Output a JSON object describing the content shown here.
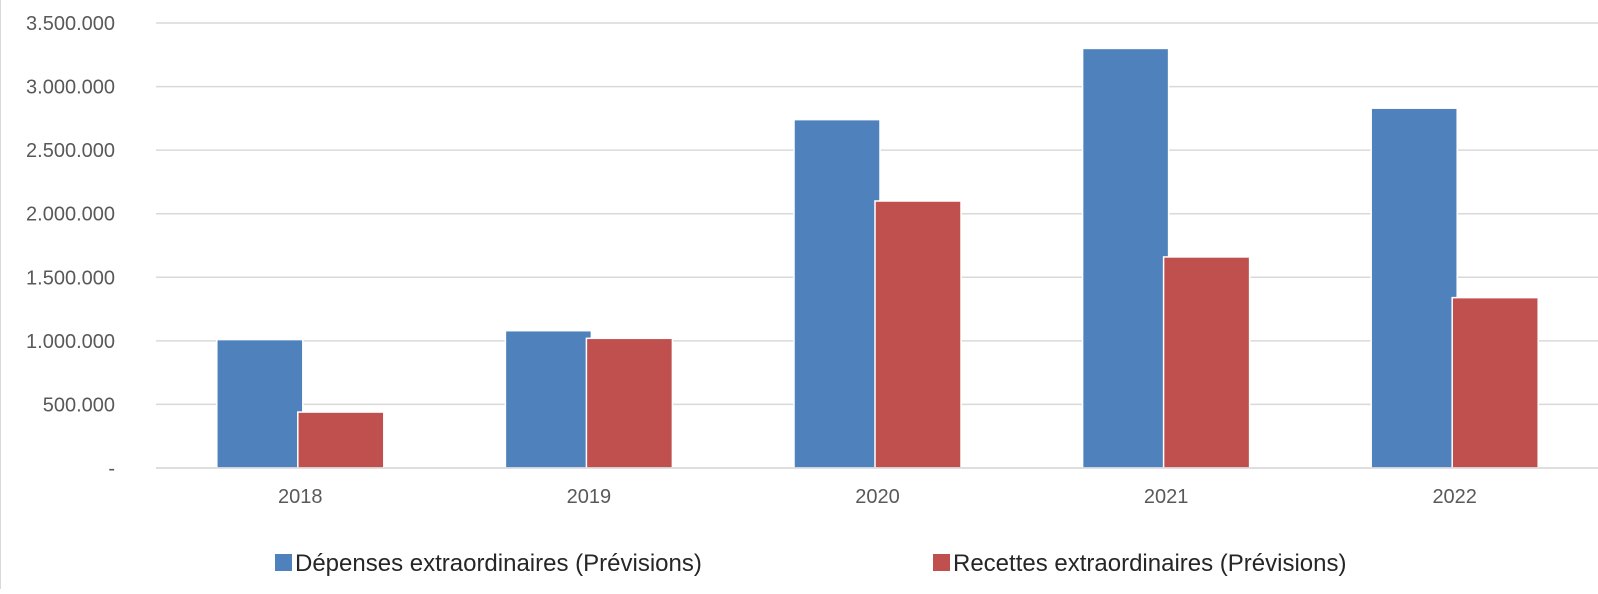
{
  "chart_data": {
    "type": "bar",
    "categories": [
      "2018",
      "2019",
      "2020",
      "2021",
      "2022"
    ],
    "series": [
      {
        "name": "Dépenses extraordinaires (Prévisions)",
        "color": "#4F81BD",
        "values": [
          1010000,
          1080000,
          2740000,
          3300000,
          2830000
        ]
      },
      {
        "name": "Recettes extraordinaires (Prévisions)",
        "color": "#C0504D",
        "values": [
          440000,
          1020000,
          2100000,
          1660000,
          1340000
        ]
      }
    ],
    "ylim": [
      0,
      3500000
    ],
    "yticks": [
      0,
      500000,
      1000000,
      1500000,
      2000000,
      2500000,
      3000000,
      3500000
    ],
    "ytick_labels": [
      "-",
      "500.000",
      "1.000.000",
      "1.500.000",
      "2.000.000",
      "2.500.000",
      "3.000.000",
      "3.500.000"
    ],
    "grid": true,
    "legend_position": "bottom",
    "gridline_color": "#d9d9d9"
  }
}
